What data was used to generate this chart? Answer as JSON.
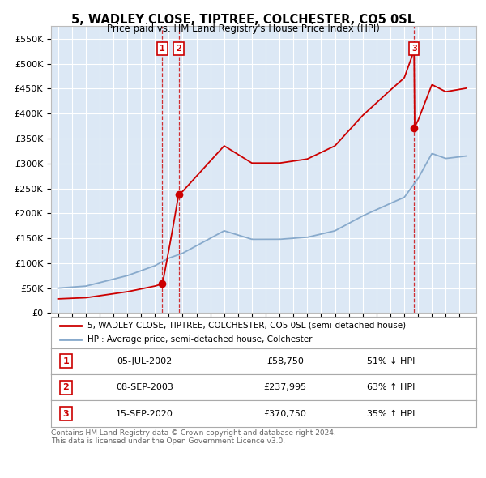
{
  "title": "5, WADLEY CLOSE, TIPTREE, COLCHESTER, CO5 0SL",
  "subtitle": "Price paid vs. HM Land Registry's House Price Index (HPI)",
  "yticks": [
    0,
    50000,
    100000,
    150000,
    200000,
    250000,
    300000,
    350000,
    400000,
    450000,
    500000,
    550000
  ],
  "ytick_labels": [
    "£0",
    "£50K",
    "£100K",
    "£150K",
    "£200K",
    "£250K",
    "£300K",
    "£350K",
    "£400K",
    "£450K",
    "£500K",
    "£550K"
  ],
  "sale_year_floats": [
    2002.54,
    2003.71,
    2020.71
  ],
  "sale_prices": [
    58750,
    237995,
    370750
  ],
  "sale_labels": [
    "1",
    "2",
    "3"
  ],
  "sale_label_notes": [
    "05-JUL-2002",
    "08-SEP-2003",
    "15-SEP-2020"
  ],
  "sale_price_str": [
    "£58,750",
    "£237,995",
    "£370,750"
  ],
  "sale_hpi_notes": [
    "51% ↓ HPI",
    "63% ↑ HPI",
    "35% ↑ HPI"
  ],
  "property_line_color": "#cc0000",
  "hpi_line_color": "#88aacc",
  "vline_color": "#cc0000",
  "legend_label_property": "5, WADLEY CLOSE, TIPTREE, COLCHESTER, CO5 0SL (semi-detached house)",
  "legend_label_hpi": "HPI: Average price, semi-detached house, Colchester",
  "footer": "Contains HM Land Registry data © Crown copyright and database right 2024.\nThis data is licensed under the Open Government Licence v3.0.",
  "background_color": "#ffffff",
  "plot_bg_color": "#dce8f5"
}
